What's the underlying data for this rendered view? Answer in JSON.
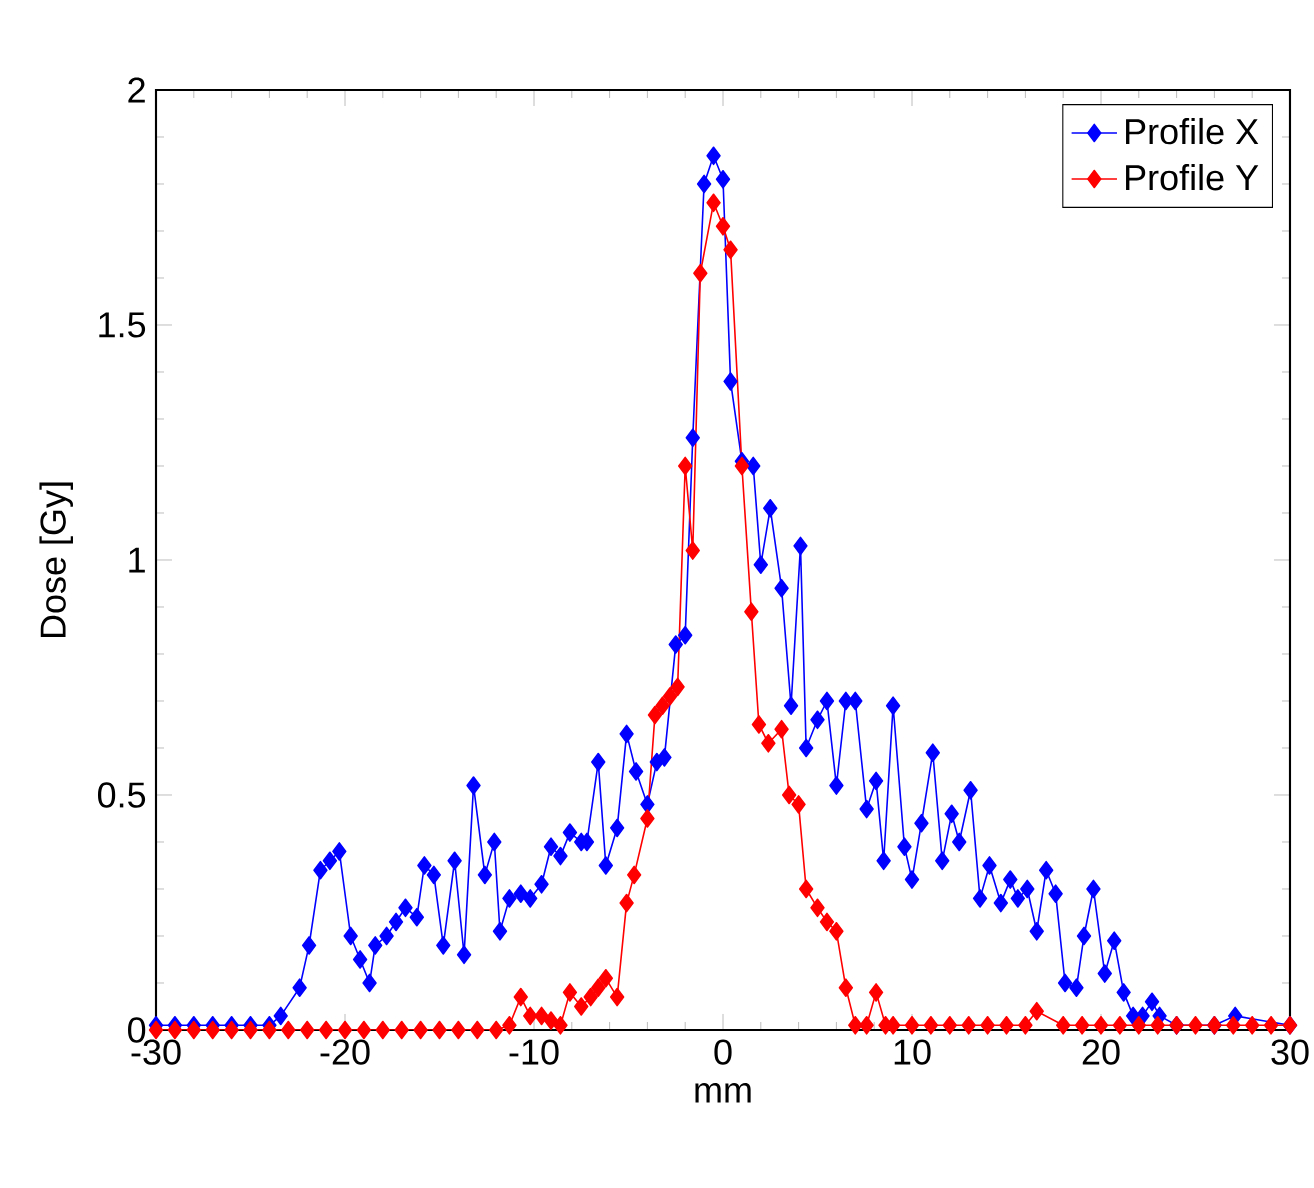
{
  "chart_data": {
    "type": "line",
    "xlabel": "mm",
    "ylabel": "Dose [Gy]",
    "xlim": [
      -30,
      30
    ],
    "ylim": [
      0,
      2
    ],
    "xticks": [
      -30,
      -20,
      -10,
      0,
      10,
      20,
      30
    ],
    "yticks": [
      0,
      0.5,
      1,
      1.5,
      2
    ],
    "legend": "top right",
    "marker": "diamond",
    "grid": false,
    "series": [
      {
        "name": "Profile X",
        "color": "#0000ff",
        "x": [
          -30,
          -29,
          -28,
          -27,
          -26,
          -25,
          -24,
          -23.4,
          -22.4,
          -21.9,
          -21.3,
          -20.8,
          -20.3,
          -19.7,
          -19.2,
          -18.7,
          -18.4,
          -17.8,
          -17.3,
          -16.8,
          -16.2,
          -15.8,
          -15.3,
          -14.8,
          -14.2,
          -13.7,
          -13.2,
          -12.6,
          -12.1,
          -11.8,
          -11.3,
          -10.7,
          -10.2,
          -9.6,
          -9.1,
          -8.6,
          -8.1,
          -7.5,
          -7.2,
          -6.6,
          -6.2,
          -5.6,
          -5.1,
          -4.6,
          -4.0,
          -3.5,
          -3.1,
          -2.5,
          -2.0,
          -1.6,
          -1.0,
          -0.5,
          0,
          0.4,
          1.0,
          1.6,
          2.0,
          2.5,
          3.1,
          3.6,
          4.1,
          4.4,
          5.0,
          5.5,
          6.0,
          6.5,
          7.0,
          7.6,
          8.1,
          8.5,
          9.0,
          9.6,
          10.0,
          10.5,
          11.1,
          11.6,
          12.1,
          12.5,
          13.1,
          13.6,
          14.1,
          14.7,
          15.2,
          15.6,
          16.1,
          16.6,
          17.1,
          17.6,
          18.1,
          18.7,
          19.1,
          19.6,
          20.2,
          20.7,
          21.2,
          21.7,
          22.2,
          22.7,
          23.1,
          24,
          25,
          26,
          27.1,
          28,
          29,
          30
        ],
        "values": [
          0.01,
          0.01,
          0.01,
          0.01,
          0.01,
          0.01,
          0.01,
          0.03,
          0.09,
          0.18,
          0.34,
          0.36,
          0.38,
          0.2,
          0.15,
          0.1,
          0.18,
          0.2,
          0.23,
          0.26,
          0.24,
          0.35,
          0.33,
          0.18,
          0.36,
          0.16,
          0.52,
          0.33,
          0.4,
          0.21,
          0.28,
          0.29,
          0.28,
          0.31,
          0.39,
          0.37,
          0.42,
          0.4,
          0.4,
          0.57,
          0.35,
          0.43,
          0.63,
          0.55,
          0.48,
          0.57,
          0.58,
          0.82,
          0.84,
          1.26,
          1.8,
          1.86,
          1.81,
          1.38,
          1.21,
          1.2,
          0.99,
          1.11,
          0.94,
          0.69,
          1.03,
          0.6,
          0.66,
          0.7,
          0.52,
          0.7,
          0.7,
          0.47,
          0.53,
          0.36,
          0.69,
          0.39,
          0.32,
          0.44,
          0.59,
          0.36,
          0.46,
          0.4,
          0.51,
          0.28,
          0.35,
          0.27,
          0.32,
          0.28,
          0.3,
          0.21,
          0.34,
          0.29,
          0.1,
          0.09,
          0.2,
          0.3,
          0.12,
          0.19,
          0.08,
          0.03,
          0.03,
          0.06,
          0.03,
          0.01,
          null,
          0.01,
          0.03,
          null,
          null,
          0.01
        ]
      },
      {
        "name": "Profile Y",
        "color": "#ff0000",
        "x": [
          -30,
          -29,
          -28,
          -27,
          -26,
          -25,
          -24,
          -23,
          -22,
          -21,
          -20,
          -19,
          -18,
          -17,
          -16,
          -15,
          -14,
          -13,
          -12,
          -11.3,
          -10.7,
          -10.2,
          -9.6,
          -9.1,
          -8.6,
          -8.1,
          -7.5,
          -7.0,
          -6.6,
          -6.2,
          -5.6,
          -5.1,
          -4.7,
          -4.0,
          -3.6,
          -3.2,
          -2.8,
          -2.4,
          -2.0,
          -1.6,
          -1.2,
          -0.5,
          0,
          0.4,
          1.0,
          1.5,
          1.9,
          2.4,
          3.1,
          3.5,
          4.0,
          4.4,
          5.0,
          5.5,
          6.0,
          6.5,
          7.0,
          7.6,
          8.1,
          8.6,
          9,
          10,
          11,
          12,
          13,
          14,
          15,
          16,
          16.6,
          18,
          19,
          20,
          21,
          22,
          23,
          24,
          25,
          26,
          27,
          28,
          29,
          30
        ],
        "values": [
          0,
          0,
          0,
          0,
          0,
          0,
          0,
          0,
          0,
          0,
          0,
          0,
          0,
          0,
          0,
          0,
          0,
          0,
          0,
          0.01,
          0.07,
          0.03,
          0.03,
          0.02,
          0.01,
          0.08,
          0.05,
          0.07,
          0.09,
          0.11,
          0.07,
          0.27,
          0.33,
          0.45,
          0.67,
          0.69,
          0.71,
          0.73,
          1.2,
          1.02,
          1.61,
          1.76,
          1.71,
          1.66,
          1.2,
          0.89,
          0.65,
          0.61,
          0.64,
          0.5,
          0.48,
          0.3,
          0.26,
          0.23,
          0.21,
          0.09,
          0.01,
          0.01,
          0.08,
          0.01,
          0.01,
          0.01,
          0.01,
          0.01,
          0.01,
          0.01,
          0.01,
          0.01,
          0.04,
          0.01,
          0.01,
          0.01,
          0.01,
          0.01,
          0.01,
          0.01,
          0.01,
          0.01,
          0.01,
          0.01,
          0.01,
          0.01
        ]
      }
    ]
  }
}
